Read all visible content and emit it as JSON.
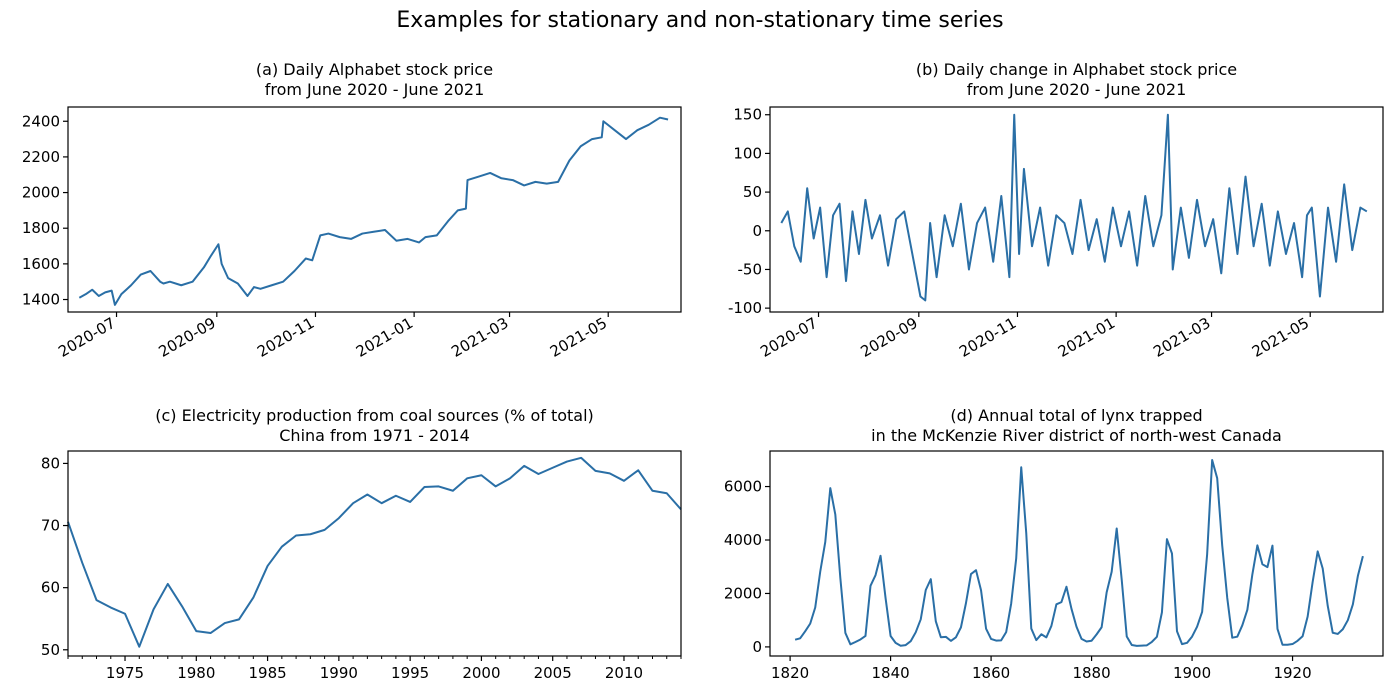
{
  "figure": {
    "suptitle": "Examples for stationary and non-stationary time series",
    "line_color": "#2a6fa6"
  },
  "chart_data": [
    {
      "id": "a",
      "type": "line",
      "title": "(a) Daily Alphabet stock price\nfrom June 2020 - June 2021",
      "xaxis": "date",
      "xlim": [
        "2020-06-01",
        "2021-06-15"
      ],
      "ylim": [
        1330,
        2480
      ],
      "yticks": [
        1400,
        1600,
        1800,
        2000,
        2200,
        2400
      ],
      "xticks": [
        "2020-07",
        "2020-09",
        "2020-11",
        "2021-01",
        "2021-03",
        "2021-05"
      ],
      "xtick_rotate": true,
      "x": [
        "2020-06-08",
        "2020-06-12",
        "2020-06-16",
        "2020-06-20",
        "2020-06-24",
        "2020-06-28",
        "2020-06-30",
        "2020-07-04",
        "2020-07-10",
        "2020-07-16",
        "2020-07-22",
        "2020-07-28",
        "2020-07-30",
        "2020-08-03",
        "2020-08-10",
        "2020-08-17",
        "2020-08-24",
        "2020-08-28",
        "2020-09-02",
        "2020-09-04",
        "2020-09-08",
        "2020-09-14",
        "2020-09-20",
        "2020-09-24",
        "2020-09-28",
        "2020-10-05",
        "2020-10-12",
        "2020-10-19",
        "2020-10-26",
        "2020-10-30",
        "2020-11-04",
        "2020-11-09",
        "2020-11-16",
        "2020-11-23",
        "2020-11-30",
        "2020-12-07",
        "2020-12-14",
        "2020-12-21",
        "2020-12-28",
        "2021-01-04",
        "2021-01-08",
        "2021-01-15",
        "2021-01-22",
        "2021-01-28",
        "2021-02-02",
        "2021-02-03",
        "2021-02-10",
        "2021-02-17",
        "2021-02-24",
        "2021-03-03",
        "2021-03-10",
        "2021-03-17",
        "2021-03-24",
        "2021-03-31",
        "2021-04-07",
        "2021-04-14",
        "2021-04-21",
        "2021-04-27",
        "2021-04-28",
        "2021-05-05",
        "2021-05-12",
        "2021-05-19",
        "2021-05-26",
        "2021-06-02",
        "2021-06-07"
      ],
      "y": [
        1410,
        1430,
        1455,
        1420,
        1440,
        1450,
        1370,
        1430,
        1480,
        1540,
        1560,
        1500,
        1490,
        1500,
        1480,
        1500,
        1580,
        1640,
        1710,
        1600,
        1520,
        1490,
        1420,
        1470,
        1460,
        1480,
        1500,
        1560,
        1630,
        1620,
        1760,
        1770,
        1750,
        1740,
        1770,
        1780,
        1790,
        1730,
        1740,
        1720,
        1750,
        1760,
        1840,
        1900,
        1910,
        2070,
        2090,
        2110,
        2080,
        2070,
        2040,
        2060,
        2050,
        2060,
        2180,
        2260,
        2300,
        2310,
        2400,
        2350,
        2300,
        2350,
        2380,
        2420,
        2410
      ]
    },
    {
      "id": "b",
      "type": "line",
      "title": "(b) Daily change in Alphabet stock price\nfrom June 2020 - June 2021",
      "xaxis": "date",
      "xlim": [
        "2020-06-01",
        "2021-06-15"
      ],
      "ylim": [
        -105,
        160
      ],
      "yticks": [
        -100,
        -50,
        0,
        50,
        100,
        150
      ],
      "xticks": [
        "2020-07",
        "2020-09",
        "2020-11",
        "2021-01",
        "2021-03",
        "2021-05"
      ],
      "xtick_rotate": true,
      "x": [
        "2020-06-08",
        "2020-06-12",
        "2020-06-16",
        "2020-06-20",
        "2020-06-24",
        "2020-06-28",
        "2020-07-02",
        "2020-07-06",
        "2020-07-10",
        "2020-07-14",
        "2020-07-18",
        "2020-07-22",
        "2020-07-26",
        "2020-07-30",
        "2020-08-03",
        "2020-08-08",
        "2020-08-13",
        "2020-08-18",
        "2020-08-23",
        "2020-08-28",
        "2020-09-02",
        "2020-09-05",
        "2020-09-08",
        "2020-09-12",
        "2020-09-17",
        "2020-09-22",
        "2020-09-27",
        "2020-10-02",
        "2020-10-07",
        "2020-10-12",
        "2020-10-17",
        "2020-10-22",
        "2020-10-27",
        "2020-10-30",
        "2020-11-02",
        "2020-11-05",
        "2020-11-10",
        "2020-11-15",
        "2020-11-20",
        "2020-11-25",
        "2020-11-30",
        "2020-12-05",
        "2020-12-10",
        "2020-12-15",
        "2020-12-20",
        "2020-12-25",
        "2020-12-30",
        "2021-01-04",
        "2021-01-09",
        "2021-01-14",
        "2021-01-19",
        "2021-01-24",
        "2021-01-29",
        "2021-02-02",
        "2021-02-05",
        "2021-02-10",
        "2021-02-15",
        "2021-02-20",
        "2021-02-25",
        "2021-03-02",
        "2021-03-07",
        "2021-03-12",
        "2021-03-17",
        "2021-03-22",
        "2021-03-27",
        "2021-04-01",
        "2021-04-06",
        "2021-04-11",
        "2021-04-16",
        "2021-04-21",
        "2021-04-26",
        "2021-04-29",
        "2021-05-02",
        "2021-05-07",
        "2021-05-12",
        "2021-05-17",
        "2021-05-22",
        "2021-05-27",
        "2021-06-01",
        "2021-06-05"
      ],
      "y": [
        10,
        25,
        -20,
        -40,
        55,
        -10,
        30,
        -60,
        20,
        35,
        -65,
        25,
        -30,
        40,
        -10,
        20,
        -45,
        15,
        25,
        -30,
        -85,
        -90,
        10,
        -60,
        20,
        -20,
        35,
        -50,
        10,
        30,
        -40,
        45,
        -60,
        150,
        -30,
        80,
        -20,
        30,
        -45,
        20,
        10,
        -30,
        40,
        -25,
        15,
        -40,
        30,
        -20,
        25,
        -45,
        45,
        -20,
        20,
        150,
        -50,
        30,
        -35,
        40,
        -20,
        15,
        -55,
        55,
        -30,
        70,
        -20,
        35,
        -45,
        25,
        -30,
        10,
        -60,
        20,
        30,
        -85,
        30,
        -40,
        60,
        -25,
        30,
        25
      ]
    },
    {
      "id": "c",
      "type": "line",
      "title": "(c) Electricity production from coal sources (% of total)\nChina from 1971 - 2014",
      "xaxis": "number",
      "xlim": [
        1971,
        2014
      ],
      "ylim": [
        49,
        82
      ],
      "yticks": [
        50,
        60,
        70,
        80
      ],
      "xticks": [
        1975,
        1980,
        1985,
        1990,
        1995,
        2000,
        2005,
        2010
      ],
      "x": [
        1971,
        1972,
        1973,
        1974,
        1975,
        1976,
        1977,
        1978,
        1979,
        1980,
        1981,
        1982,
        1983,
        1984,
        1985,
        1986,
        1987,
        1988,
        1989,
        1990,
        1991,
        1992,
        1993,
        1994,
        1995,
        1996,
        1997,
        1998,
        1999,
        2000,
        2001,
        2002,
        2003,
        2004,
        2005,
        2006,
        2007,
        2008,
        2009,
        2010,
        2011,
        2012,
        2013,
        2014
      ],
      "y": [
        70.6,
        64.0,
        58.0,
        56.8,
        55.8,
        50.5,
        56.5,
        60.6,
        57.0,
        53.0,
        52.7,
        54.3,
        54.9,
        58.4,
        63.5,
        66.6,
        68.4,
        68.6,
        69.3,
        71.2,
        73.6,
        75.0,
        73.6,
        74.8,
        73.8,
        76.2,
        76.3,
        75.6,
        77.6,
        78.1,
        76.3,
        77.6,
        79.6,
        78.3,
        79.3,
        80.3,
        80.9,
        78.8,
        78.4,
        77.2,
        78.9,
        75.6,
        75.2,
        72.6
      ]
    },
    {
      "id": "d",
      "type": "line",
      "title": "(d) Annual total of lynx trapped\nin the McKenzie River district of north-west Canada",
      "xaxis": "number",
      "xlim": [
        1816,
        1938
      ],
      "ylim": [
        -340,
        7330
      ],
      "yticks": [
        0,
        2000,
        4000,
        6000
      ],
      "xticks": [
        1820,
        1840,
        1860,
        1880,
        1900,
        1920
      ],
      "x": [
        1821,
        1822,
        1823,
        1824,
        1825,
        1826,
        1827,
        1828,
        1829,
        1830,
        1831,
        1832,
        1833,
        1834,
        1835,
        1836,
        1837,
        1838,
        1839,
        1840,
        1841,
        1842,
        1843,
        1844,
        1845,
        1846,
        1847,
        1848,
        1849,
        1850,
        1851,
        1852,
        1853,
        1854,
        1855,
        1856,
        1857,
        1858,
        1859,
        1860,
        1861,
        1862,
        1863,
        1864,
        1865,
        1866,
        1867,
        1868,
        1869,
        1870,
        1871,
        1872,
        1873,
        1874,
        1875,
        1876,
        1877,
        1878,
        1879,
        1880,
        1881,
        1882,
        1883,
        1884,
        1885,
        1886,
        1887,
        1888,
        1889,
        1890,
        1891,
        1892,
        1893,
        1894,
        1895,
        1896,
        1897,
        1898,
        1899,
        1900,
        1901,
        1902,
        1903,
        1904,
        1905,
        1906,
        1907,
        1908,
        1909,
        1910,
        1911,
        1912,
        1913,
        1914,
        1915,
        1916,
        1917,
        1918,
        1919,
        1920,
        1921,
        1922,
        1923,
        1924,
        1925,
        1926,
        1927,
        1928,
        1929,
        1930,
        1931,
        1932,
        1933,
        1934
      ],
      "y": [
        269,
        321,
        585,
        871,
        1475,
        2821,
        3928,
        5943,
        4950,
        2577,
        523,
        98,
        184,
        279,
        409,
        2285,
        2685,
        3409,
        1824,
        409,
        151,
        45,
        68,
        213,
        546,
        1033,
        2129,
        2536,
        957,
        361,
        377,
        225,
        360,
        731,
        1638,
        2725,
        2871,
        2119,
        684,
        299,
        236,
        245,
        552,
        1623,
        3311,
        6721,
        4254,
        687,
        255,
        473,
        358,
        784,
        1594,
        1676,
        2251,
        1426,
        756,
        299,
        201,
        229,
        469,
        736,
        2042,
        2811,
        4431,
        2511,
        389,
        73,
        39,
        49,
        59,
        188,
        377,
        1292,
        4031,
        3495,
        587,
        105,
        153,
        387,
        758,
        1307,
        3465,
        6991,
        6313,
        3794,
        1836,
        345,
        382,
        808,
        1388,
        2713,
        3800,
        3091,
        2985,
        3790,
        674,
        81,
        80,
        108,
        229,
        399,
        1132,
        2432,
        3574,
        2935,
        1537,
        529,
        485,
        662,
        1000,
        1590,
        2657,
        3396
      ]
    }
  ]
}
